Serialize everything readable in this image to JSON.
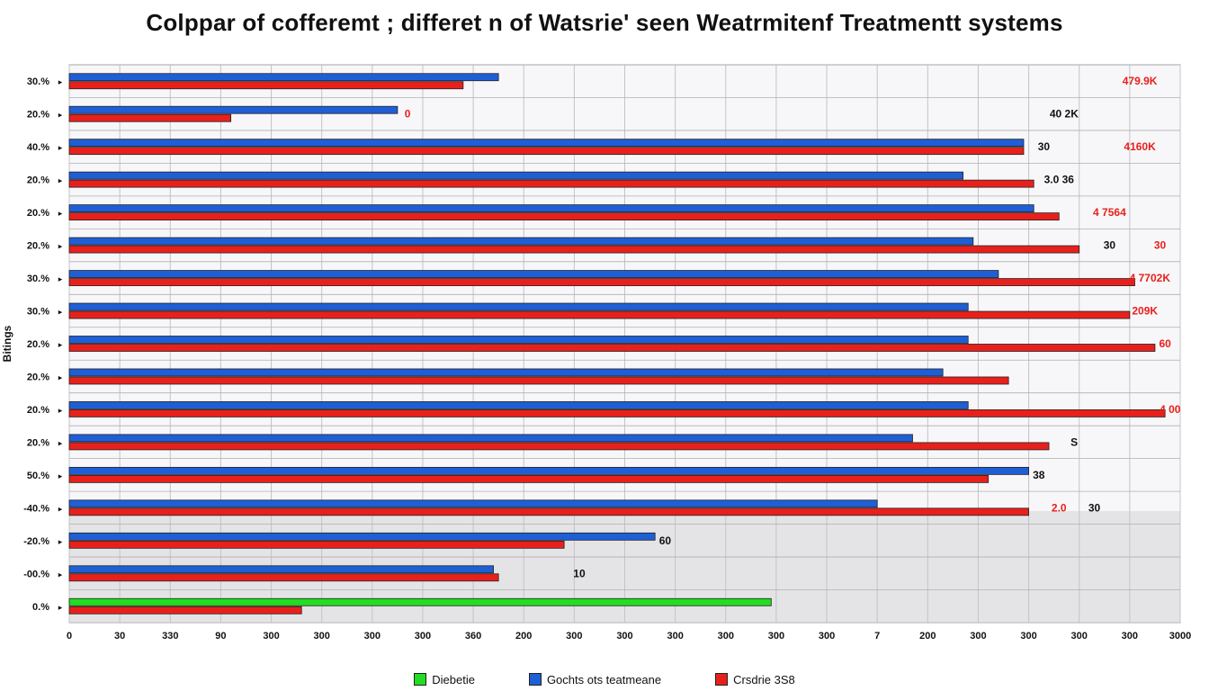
{
  "chart_data": {
    "type": "bar",
    "orientation": "horizontal",
    "title": "Colppar of cofferemt ; differet n of Watsrie' seen Weatrmitenf Treatmentt systems",
    "ylabel": "Bitings",
    "xlabel": "",
    "grid": true,
    "legend_position": "bottom",
    "colors": {
      "green": "#22dd22",
      "blue": "#1f5fd6",
      "red": "#e8201c"
    },
    "series": [
      {
        "name": "Diebetie",
        "color": "#22dd22"
      },
      {
        "name": "Gochts ots teatmeane",
        "color": "#1f5fd6"
      },
      {
        "name": "Crsdrie 3S8",
        "color": "#e8201c"
      }
    ],
    "x_ticks": [
      "0",
      "30",
      "330",
      "90",
      "300",
      "300",
      "300",
      "300",
      "360",
      "200",
      "300",
      "300",
      "300",
      "300",
      "300",
      "300",
      "7",
      "200",
      "300",
      "300",
      "300",
      "300",
      "3000"
    ],
    "x_min": 0,
    "x_max": 22,
    "rows": [
      {
        "label": "30.%",
        "blue": 8.5,
        "red": 7.8,
        "annot": [
          {
            "text": "479.9K",
            "color": "#e8201c",
            "x": 21.2
          }
        ]
      },
      {
        "label": "20.%",
        "blue": 6.5,
        "red": 3.2,
        "annot": [
          {
            "text": "0",
            "color": "#e8201c",
            "x": 6.7
          },
          {
            "text": "40   2K",
            "color": "#111111",
            "x": 19.7
          }
        ]
      },
      {
        "label": "40.%",
        "blue": 18.9,
        "red": 18.9,
        "annot": [
          {
            "text": "30",
            "color": "#111111",
            "x": 19.3
          },
          {
            "text": "4160K",
            "color": "#e8201c",
            "x": 21.2
          }
        ]
      },
      {
        "label": "20.%",
        "blue": 17.7,
        "red": 19.1,
        "annot": [
          {
            "text": "3.0   36",
            "color": "#111111",
            "x": 19.6
          }
        ]
      },
      {
        "label": "20.%",
        "blue": 19.1,
        "red": 19.6,
        "annot": [
          {
            "text": "4 7564",
            "color": "#e8201c",
            "x": 20.6
          }
        ]
      },
      {
        "label": "20.%",
        "blue": 17.9,
        "red": 20.0,
        "annot": [
          {
            "text": "30",
            "color": "#111111",
            "x": 20.6
          },
          {
            "text": "30",
            "color": "#e8201c",
            "x": 21.6
          }
        ]
      },
      {
        "label": "30.%",
        "blue": 18.4,
        "red": 21.1,
        "annot": [
          {
            "text": "4 7702K",
            "color": "#e8201c",
            "x": 21.4
          }
        ]
      },
      {
        "label": "30.%",
        "blue": 17.8,
        "red": 21.0,
        "annot": [
          {
            "text": "209K",
            "color": "#e8201c",
            "x": 21.3
          }
        ]
      },
      {
        "label": "20.%",
        "blue": 17.8,
        "red": 21.5,
        "annot": [
          {
            "text": "60",
            "color": "#e8201c",
            "x": 21.7
          }
        ]
      },
      {
        "label": "20.%",
        "blue": 17.3,
        "red": 18.6,
        "annot": []
      },
      {
        "label": "20.%",
        "blue": 17.8,
        "red": 21.7,
        "annot": [
          {
            "text": "4 00",
            "color": "#e8201c",
            "x": 21.8
          }
        ]
      },
      {
        "label": "20.%",
        "blue": 16.7,
        "red": 19.4,
        "annot": [
          {
            "text": "S",
            "color": "#111111",
            "x": 19.9
          }
        ]
      },
      {
        "label": "50.%",
        "blue": 19.0,
        "red": 18.2,
        "annot": [
          {
            "text": "38",
            "color": "#111111",
            "x": 19.2
          }
        ]
      },
      {
        "label": "-40.%",
        "blue": 16.0,
        "red": 19.0,
        "annot": [
          {
            "text": "2.0",
            "color": "#e8201c",
            "x": 19.6
          },
          {
            "text": "30",
            "color": "#111111",
            "x": 20.3
          }
        ]
      },
      {
        "label": "-20.%",
        "blue": 11.6,
        "red": 9.8,
        "annot": [
          {
            "text": "60",
            "color": "#111111",
            "x": 11.8
          }
        ]
      },
      {
        "label": "-00.%",
        "blue": 8.4,
        "red": 8.5,
        "annot": [
          {
            "text": "10",
            "color": "#111111",
            "x": 10.1
          }
        ]
      },
      {
        "label": "0.%",
        "green": 13.9,
        "red": 4.6,
        "annot": []
      }
    ]
  },
  "legend": {
    "items": [
      {
        "label": "Diebetie",
        "color": "#22dd22"
      },
      {
        "label": "Gochts ots teatmeane",
        "color": "#1f5fd6"
      },
      {
        "label": "Crsdrie 3S8",
        "color": "#e8201c"
      }
    ]
  }
}
